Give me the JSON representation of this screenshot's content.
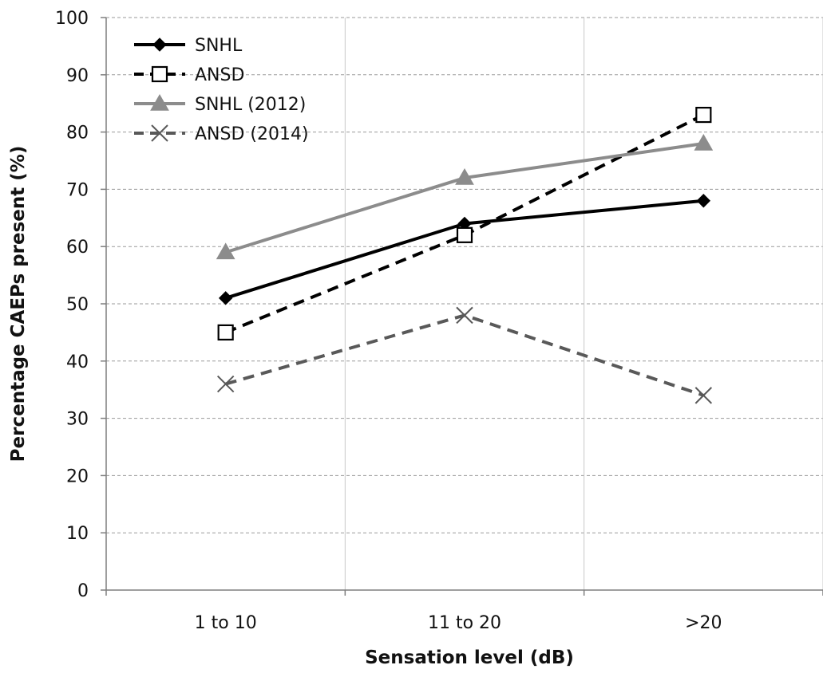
{
  "chart_data": {
    "type": "line",
    "categories": [
      "1 to 10",
      "11 to 20",
      ">20"
    ],
    "xlabel": "Sensation level (dB)",
    "ylabel": "Percentage CAEPs present (%)",
    "ylim": [
      0,
      100
    ],
    "yticks": [
      0,
      10,
      20,
      30,
      40,
      50,
      60,
      70,
      80,
      90,
      100
    ],
    "grid": true,
    "legend_position": "top-left",
    "series": [
      {
        "name": "SNHL",
        "values": [
          51,
          64,
          68
        ],
        "color": "#000000",
        "dashed": false,
        "marker": "diamond"
      },
      {
        "name": "ANSD",
        "values": [
          45,
          62,
          83
        ],
        "color": "#000000",
        "dashed": true,
        "marker": "square-open"
      },
      {
        "name": "SNHL (2012)",
        "values": [
          59,
          72,
          78
        ],
        "color": "#8c8c8c",
        "dashed": false,
        "marker": "triangle"
      },
      {
        "name": "ANSD (2014)",
        "values": [
          36,
          48,
          34
        ],
        "color": "#595959",
        "dashed": true,
        "marker": "x"
      }
    ]
  }
}
